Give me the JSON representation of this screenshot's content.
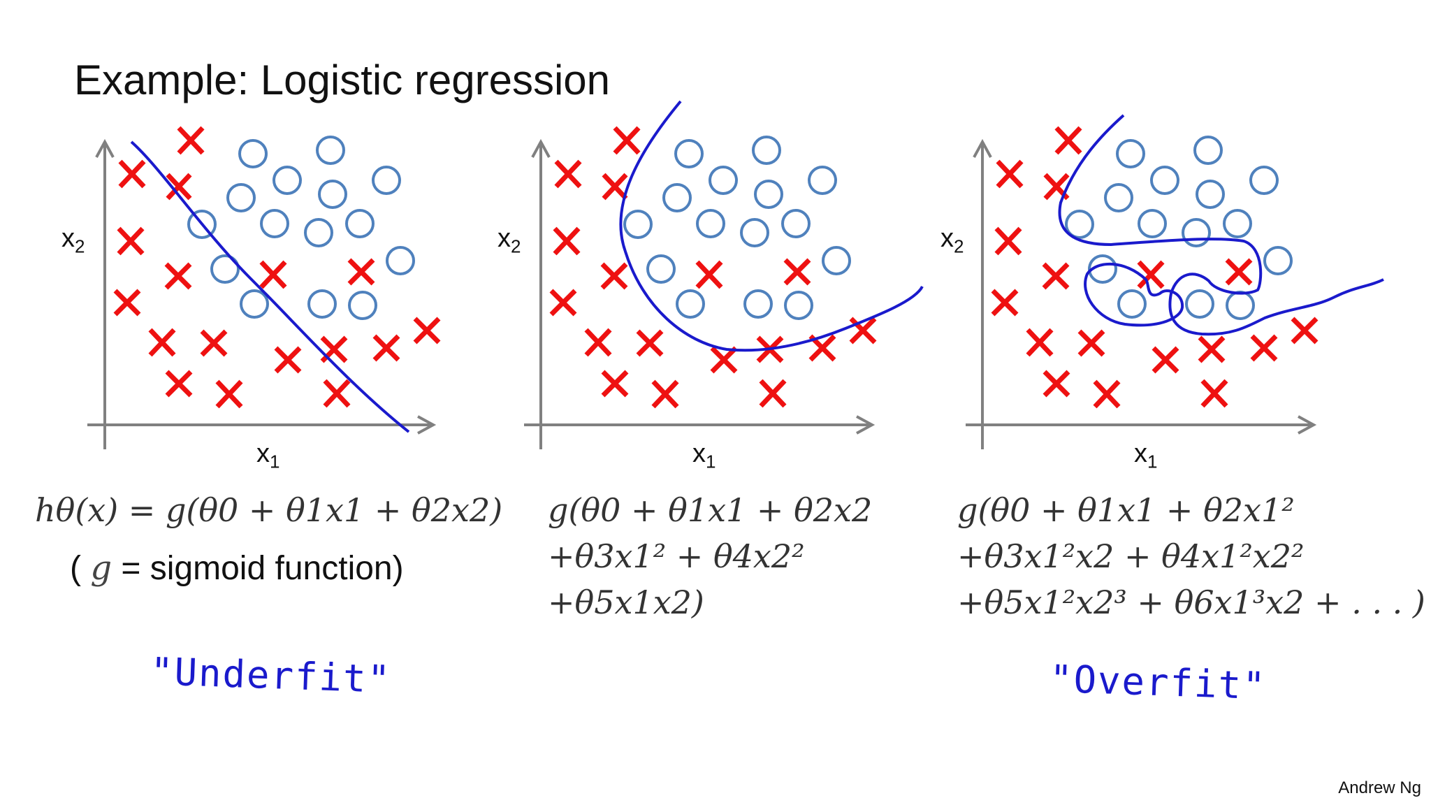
{
  "slide": {
    "title": "Example: Logistic regression",
    "author": "Andrew Ng"
  },
  "plots": [
    {
      "id": "underfit",
      "x_label": "x",
      "x_sub": "1",
      "y_label": "x",
      "y_sub": "2",
      "formula_lines": [
        "hθ(x) = g(θ0 + θ1x1 + θ2x2)"
      ],
      "note_prefix": "(",
      "note_g": "g",
      "note_rest": " = sigmoid function)",
      "annotation": "\"Underfit\""
    },
    {
      "id": "just-right",
      "x_label": "x",
      "x_sub": "1",
      "y_label": "x",
      "y_sub": "2",
      "formula_lines": [
        "g(θ0 + θ1x1 + θ2x2",
        "+θ3x1² + θ4x2²",
        "+θ5x1x2)"
      ]
    },
    {
      "id": "overfit",
      "x_label": "x",
      "x_sub": "1",
      "y_label": "x",
      "y_sub": "2",
      "formula_lines": [
        "g(θ0 + θ1x1 + θ2x1²",
        "+θ3x1²x2 + θ4x1²x2²",
        "+θ5x1²x2³ + θ6x1³x2 + . . . )"
      ],
      "annotation": "\"Overfit\""
    }
  ],
  "colors": {
    "cross": "#ee1111",
    "circle": "#4f81bd",
    "boundary": "#1a1acc",
    "axis": "#808080"
  }
}
